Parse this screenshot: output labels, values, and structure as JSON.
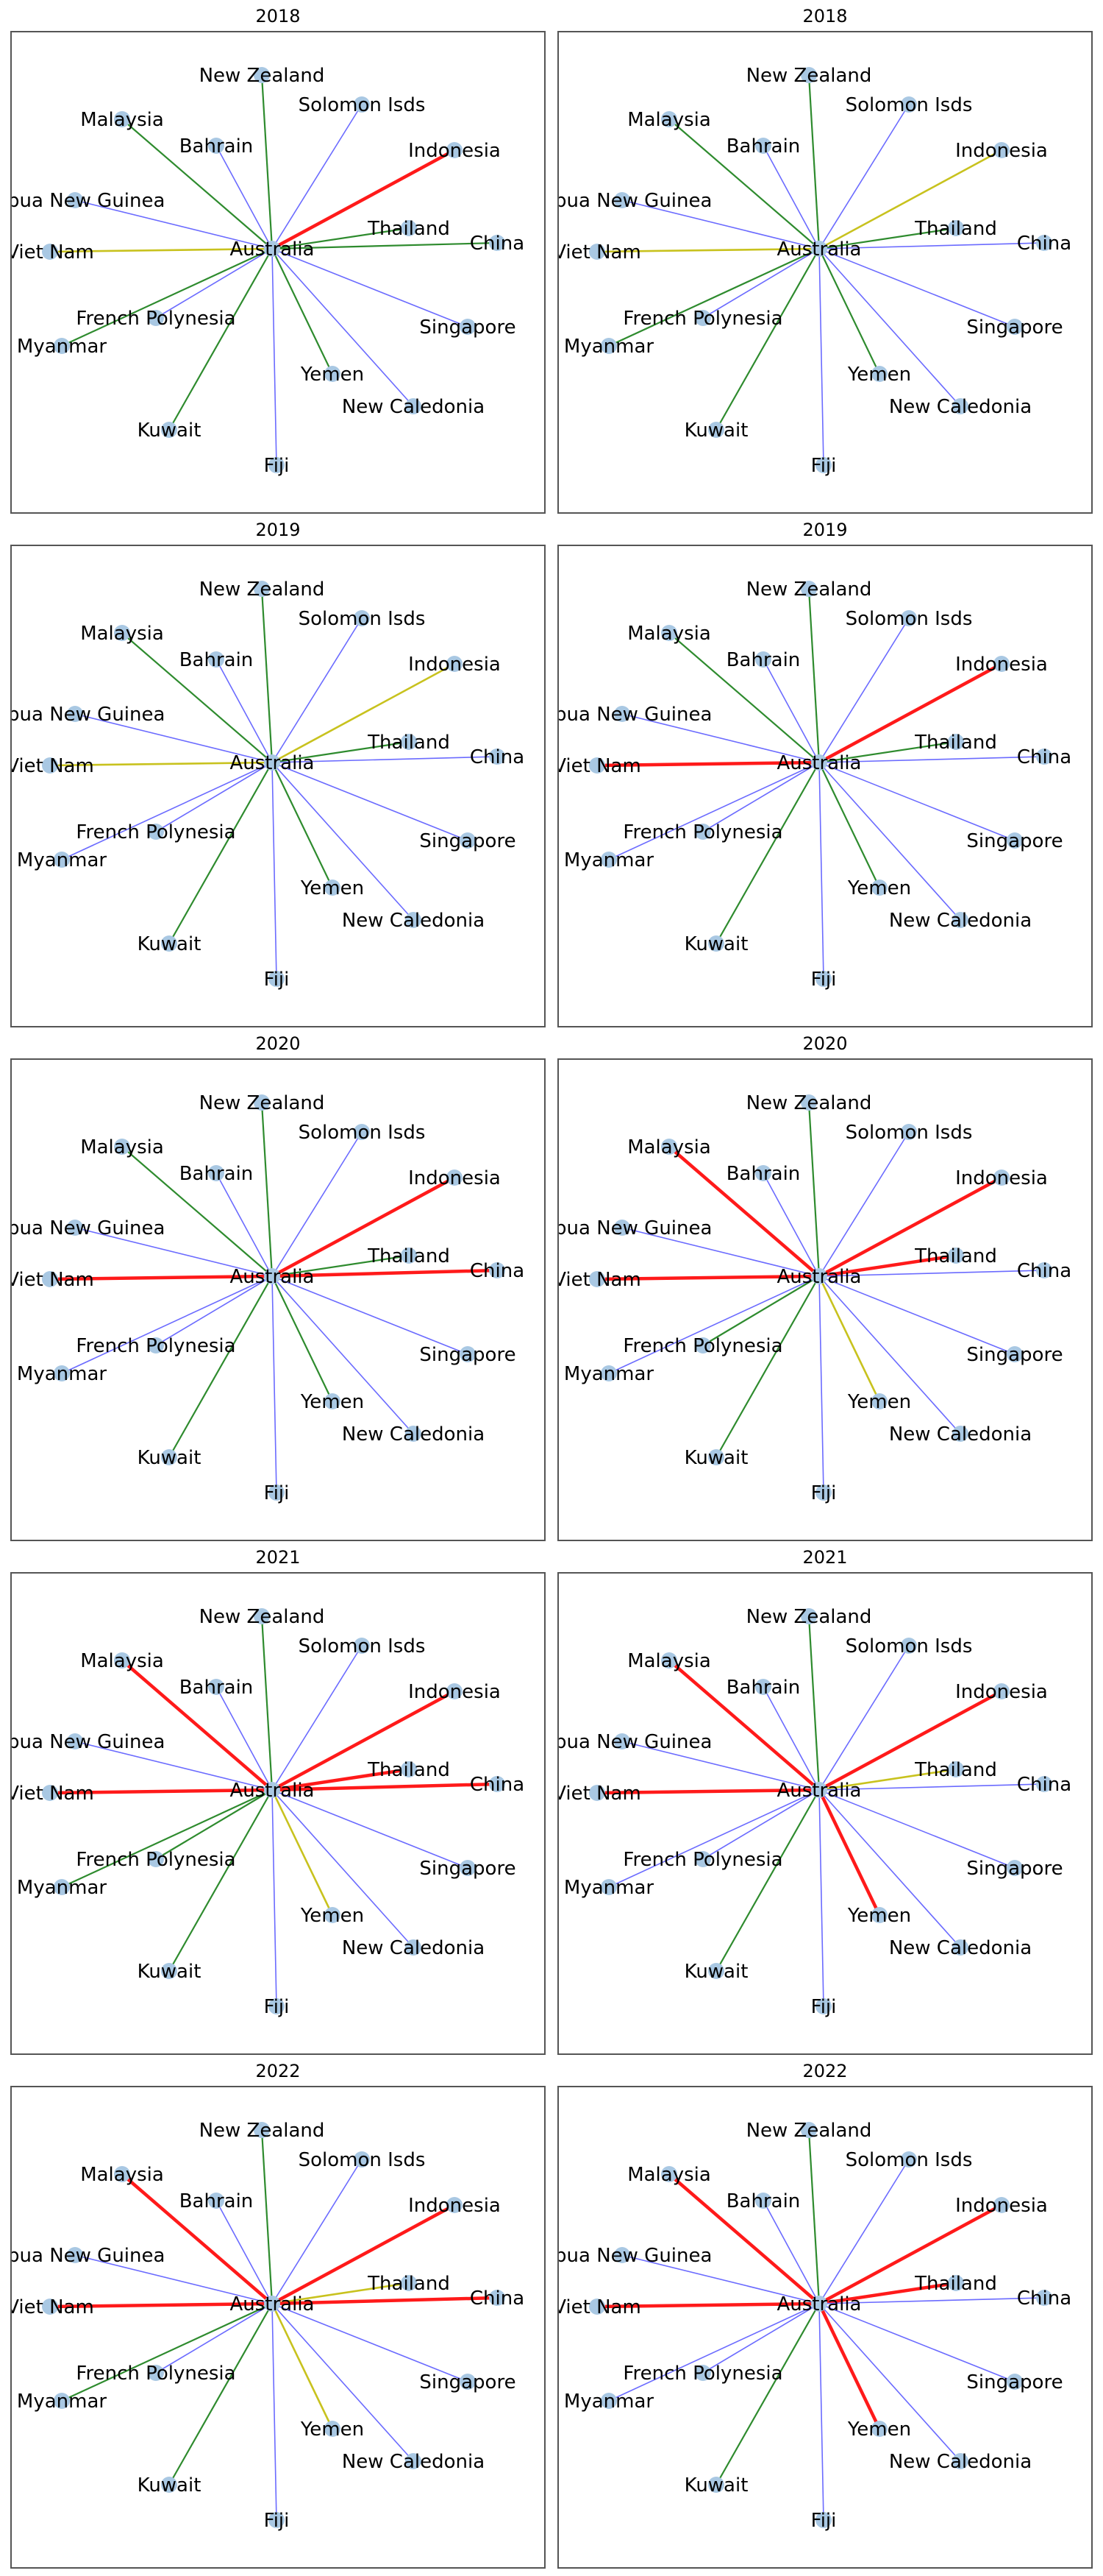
{
  "colors": {
    "blue": "#6b6bff",
    "green": "#2e8b2e",
    "yellow": "#c8c21e",
    "red": "#ff1a1a",
    "node": "#a9c8e3"
  },
  "center": "Australia",
  "countries": [
    "New Zealand",
    "Solomon Isds",
    "Malaysia",
    "Bahrain",
    "Indonesia",
    "Papua New Guinea",
    "Thailand",
    "Viet Nam",
    "China",
    "French Polynesia",
    "Singapore",
    "Myanmar",
    "Yemen",
    "New Caledonia",
    "Kuwait",
    "Fiji"
  ],
  "panels": [
    {
      "title": "2018",
      "edges": {
        "New Zealand": "green",
        "Solomon Isds": "blue",
        "Malaysia": "green",
        "Bahrain": "blue",
        "Indonesia": "red",
        "Papua New Guinea": "blue",
        "Thailand": "green",
        "Viet Nam": "yellow",
        "China": "green",
        "French Polynesia": "blue",
        "Singapore": "blue",
        "Myanmar": "green",
        "Yemen": "green",
        "New Caledonia": "blue",
        "Kuwait": "green",
        "Fiji": "blue"
      }
    },
    {
      "title": "2018",
      "edges": {
        "New Zealand": "green",
        "Solomon Isds": "blue",
        "Malaysia": "green",
        "Bahrain": "blue",
        "Indonesia": "yellow",
        "Papua New Guinea": "blue",
        "Thailand": "green",
        "Viet Nam": "yellow",
        "China": "blue",
        "French Polynesia": "blue",
        "Singapore": "blue",
        "Myanmar": "green",
        "Yemen": "green",
        "New Caledonia": "blue",
        "Kuwait": "green",
        "Fiji": "blue"
      }
    },
    {
      "title": "2019",
      "edges": {
        "New Zealand": "green",
        "Solomon Isds": "blue",
        "Malaysia": "green",
        "Bahrain": "blue",
        "Indonesia": "yellow",
        "Papua New Guinea": "blue",
        "Thailand": "green",
        "Viet Nam": "yellow",
        "China": "blue",
        "French Polynesia": "blue",
        "Singapore": "blue",
        "Myanmar": "blue",
        "Yemen": "green",
        "New Caledonia": "blue",
        "Kuwait": "green",
        "Fiji": "blue"
      }
    },
    {
      "title": "2019",
      "edges": {
        "New Zealand": "green",
        "Solomon Isds": "blue",
        "Malaysia": "green",
        "Bahrain": "blue",
        "Indonesia": "red",
        "Papua New Guinea": "blue",
        "Thailand": "green",
        "Viet Nam": "red",
        "China": "blue",
        "French Polynesia": "blue",
        "Singapore": "blue",
        "Myanmar": "blue",
        "Yemen": "green",
        "New Caledonia": "blue",
        "Kuwait": "green",
        "Fiji": "blue"
      }
    },
    {
      "title": "2020",
      "edges": {
        "New Zealand": "green",
        "Solomon Isds": "blue",
        "Malaysia": "green",
        "Bahrain": "blue",
        "Indonesia": "red",
        "Papua New Guinea": "blue",
        "Thailand": "green",
        "Viet Nam": "red",
        "China": "red",
        "French Polynesia": "blue",
        "Singapore": "blue",
        "Myanmar": "blue",
        "Yemen": "green",
        "New Caledonia": "blue",
        "Kuwait": "green",
        "Fiji": "blue"
      }
    },
    {
      "title": "2020",
      "edges": {
        "New Zealand": "green",
        "Solomon Isds": "blue",
        "Malaysia": "red",
        "Bahrain": "blue",
        "Indonesia": "red",
        "Papua New Guinea": "blue",
        "Thailand": "red",
        "Viet Nam": "red",
        "China": "blue",
        "French Polynesia": "green",
        "Singapore": "blue",
        "Myanmar": "blue",
        "Yemen": "yellow",
        "New Caledonia": "blue",
        "Kuwait": "green",
        "Fiji": "blue"
      }
    },
    {
      "title": "2021",
      "edges": {
        "New Zealand": "green",
        "Solomon Isds": "blue",
        "Malaysia": "red",
        "Bahrain": "blue",
        "Indonesia": "red",
        "Papua New Guinea": "blue",
        "Thailand": "red",
        "Viet Nam": "red",
        "China": "red",
        "French Polynesia": "green",
        "Singapore": "blue",
        "Myanmar": "green",
        "Yemen": "yellow",
        "New Caledonia": "blue",
        "Kuwait": "green",
        "Fiji": "blue"
      }
    },
    {
      "title": "2021",
      "edges": {
        "New Zealand": "green",
        "Solomon Isds": "blue",
        "Malaysia": "red",
        "Bahrain": "blue",
        "Indonesia": "red",
        "Papua New Guinea": "blue",
        "Thailand": "yellow",
        "Viet Nam": "red",
        "China": "blue",
        "French Polynesia": "blue",
        "Singapore": "blue",
        "Myanmar": "blue",
        "Yemen": "red",
        "New Caledonia": "blue",
        "Kuwait": "green",
        "Fiji": "blue"
      }
    },
    {
      "title": "2022",
      "edges": {
        "New Zealand": "green",
        "Solomon Isds": "blue",
        "Malaysia": "red",
        "Bahrain": "blue",
        "Indonesia": "red",
        "Papua New Guinea": "blue",
        "Thailand": "yellow",
        "Viet Nam": "red",
        "China": "red",
        "French Polynesia": "blue",
        "Singapore": "blue",
        "Myanmar": "green",
        "Yemen": "yellow",
        "New Caledonia": "blue",
        "Kuwait": "green",
        "Fiji": "blue"
      }
    },
    {
      "title": "2022",
      "edges": {
        "New Zealand": "green",
        "Solomon Isds": "blue",
        "Malaysia": "red",
        "Bahrain": "blue",
        "Indonesia": "red",
        "Papua New Guinea": "blue",
        "Thailand": "red",
        "Viet Nam": "red",
        "China": "blue",
        "French Polynesia": "blue",
        "Singapore": "blue",
        "Myanmar": "blue",
        "Yemen": "red",
        "New Caledonia": "blue",
        "Kuwait": "green",
        "Fiji": "blue"
      }
    }
  ]
}
